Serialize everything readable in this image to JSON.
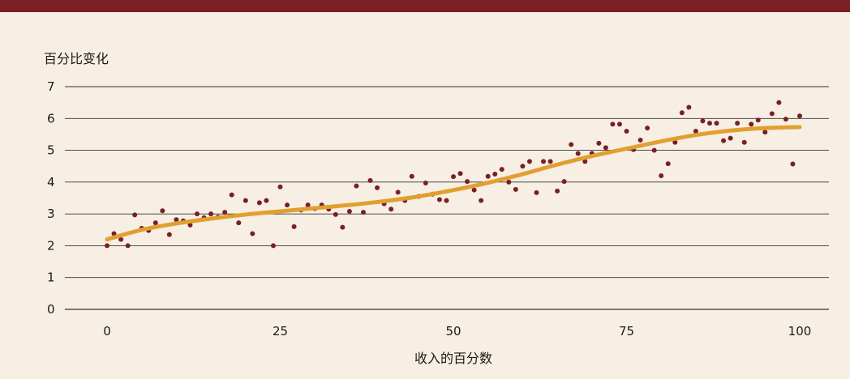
{
  "chart_data": {
    "type": "scatter",
    "title": "",
    "ylabel": "百分比变化",
    "xlabel": "收入的百分数",
    "xlim": [
      0,
      100
    ],
    "ylim": [
      0,
      7
    ],
    "x_ticks": [
      0,
      25,
      50,
      75,
      100
    ],
    "y_ticks": [
      0,
      1,
      2,
      3,
      4,
      5,
      6,
      7
    ],
    "grid": "horizontal",
    "legend": "none",
    "colors": {
      "background": "#f7efe3",
      "header_bar": "#7a1f24",
      "points": "#7a1f24",
      "trend": "#e0a030",
      "gridline": "#333333"
    },
    "series": [
      {
        "kind": "scatter",
        "x": [
          0,
          1,
          2,
          3,
          4,
          5,
          6,
          7,
          8,
          9,
          10,
          11,
          12,
          13,
          14,
          15,
          16,
          17,
          18,
          19,
          20,
          21,
          22,
          23,
          24,
          25,
          26,
          27,
          28,
          29,
          30,
          31,
          32,
          33,
          34,
          35,
          36,
          37,
          38,
          39,
          40,
          41,
          42,
          43,
          44,
          45,
          46,
          47,
          48,
          49,
          50,
          51,
          52,
          53,
          54,
          55,
          56,
          57,
          58,
          59,
          60,
          61,
          62,
          63,
          64,
          65,
          66,
          67,
          68,
          69,
          70,
          71,
          72,
          73,
          74,
          75,
          76,
          77,
          78,
          79,
          80,
          81,
          82,
          83,
          84,
          85,
          86,
          87,
          88,
          89,
          90,
          91,
          92,
          93,
          94,
          95,
          96,
          97,
          98,
          99,
          100
        ],
        "y": [
          2.0,
          2.38,
          2.2,
          2.0,
          2.97,
          2.55,
          2.48,
          2.72,
          3.1,
          2.35,
          2.82,
          2.78,
          2.65,
          3.0,
          2.88,
          3.0,
          2.9,
          3.05,
          3.6,
          2.72,
          3.42,
          2.38,
          3.35,
          3.42,
          2.0,
          3.85,
          3.28,
          2.6,
          3.12,
          3.28,
          3.17,
          3.28,
          3.15,
          2.98,
          2.58,
          3.08,
          3.88,
          3.05,
          4.05,
          3.82,
          3.32,
          3.15,
          3.68,
          3.42,
          4.18,
          3.55,
          3.97,
          3.62,
          3.45,
          3.42,
          4.17,
          4.27,
          4.02,
          3.75,
          3.42,
          4.18,
          4.25,
          4.4,
          4.0,
          3.77,
          4.5,
          4.65,
          3.67,
          4.65,
          4.65,
          3.72,
          4.02,
          5.18,
          4.9,
          4.65,
          4.9,
          5.22,
          5.08,
          5.82,
          5.82,
          5.6,
          5.02,
          5.32,
          5.7,
          5.0,
          4.2,
          4.58,
          5.25,
          6.18,
          6.35,
          5.6,
          5.92,
          5.85,
          5.85,
          5.3,
          5.38,
          5.85,
          5.25,
          5.82,
          5.95,
          5.57,
          6.15,
          6.5,
          5.98,
          4.57,
          6.08
        ]
      },
      {
        "kind": "trend",
        "x": [
          0,
          5,
          10,
          15,
          20,
          25,
          30,
          35,
          40,
          45,
          50,
          55,
          60,
          65,
          70,
          75,
          80,
          85,
          90,
          95,
          100
        ],
        "y": [
          2.2,
          2.5,
          2.7,
          2.85,
          2.98,
          3.08,
          3.18,
          3.28,
          3.4,
          3.55,
          3.75,
          3.98,
          4.25,
          4.55,
          4.82,
          5.05,
          5.28,
          5.48,
          5.62,
          5.7,
          5.73
        ]
      }
    ]
  }
}
